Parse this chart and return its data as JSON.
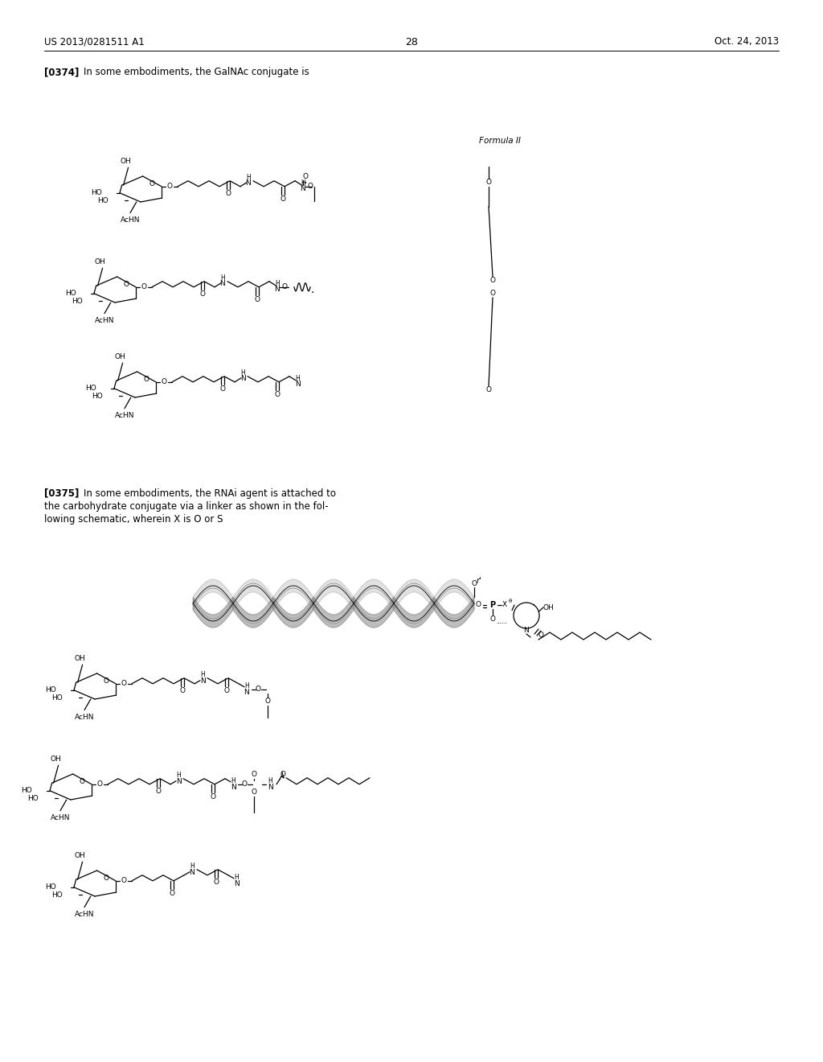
{
  "background_color": "#ffffff",
  "header_left": "US 2013/0281511 A1",
  "header_right": "Oct. 24, 2013",
  "page_number": "28",
  "para_0374": "[0374]",
  "para_0374_text": "In some embodiments, the GalNAc conjugate is",
  "formula_label": "Formula II",
  "para_0375": "[0375]",
  "para_0375_text1": "In some embodiments, the RNAi agent is attached to",
  "para_0375_text2": "the carbohydrate conjugate via a linker as shown in the fol-",
  "para_0375_text3": "lowing schematic, wherein X is O or S"
}
